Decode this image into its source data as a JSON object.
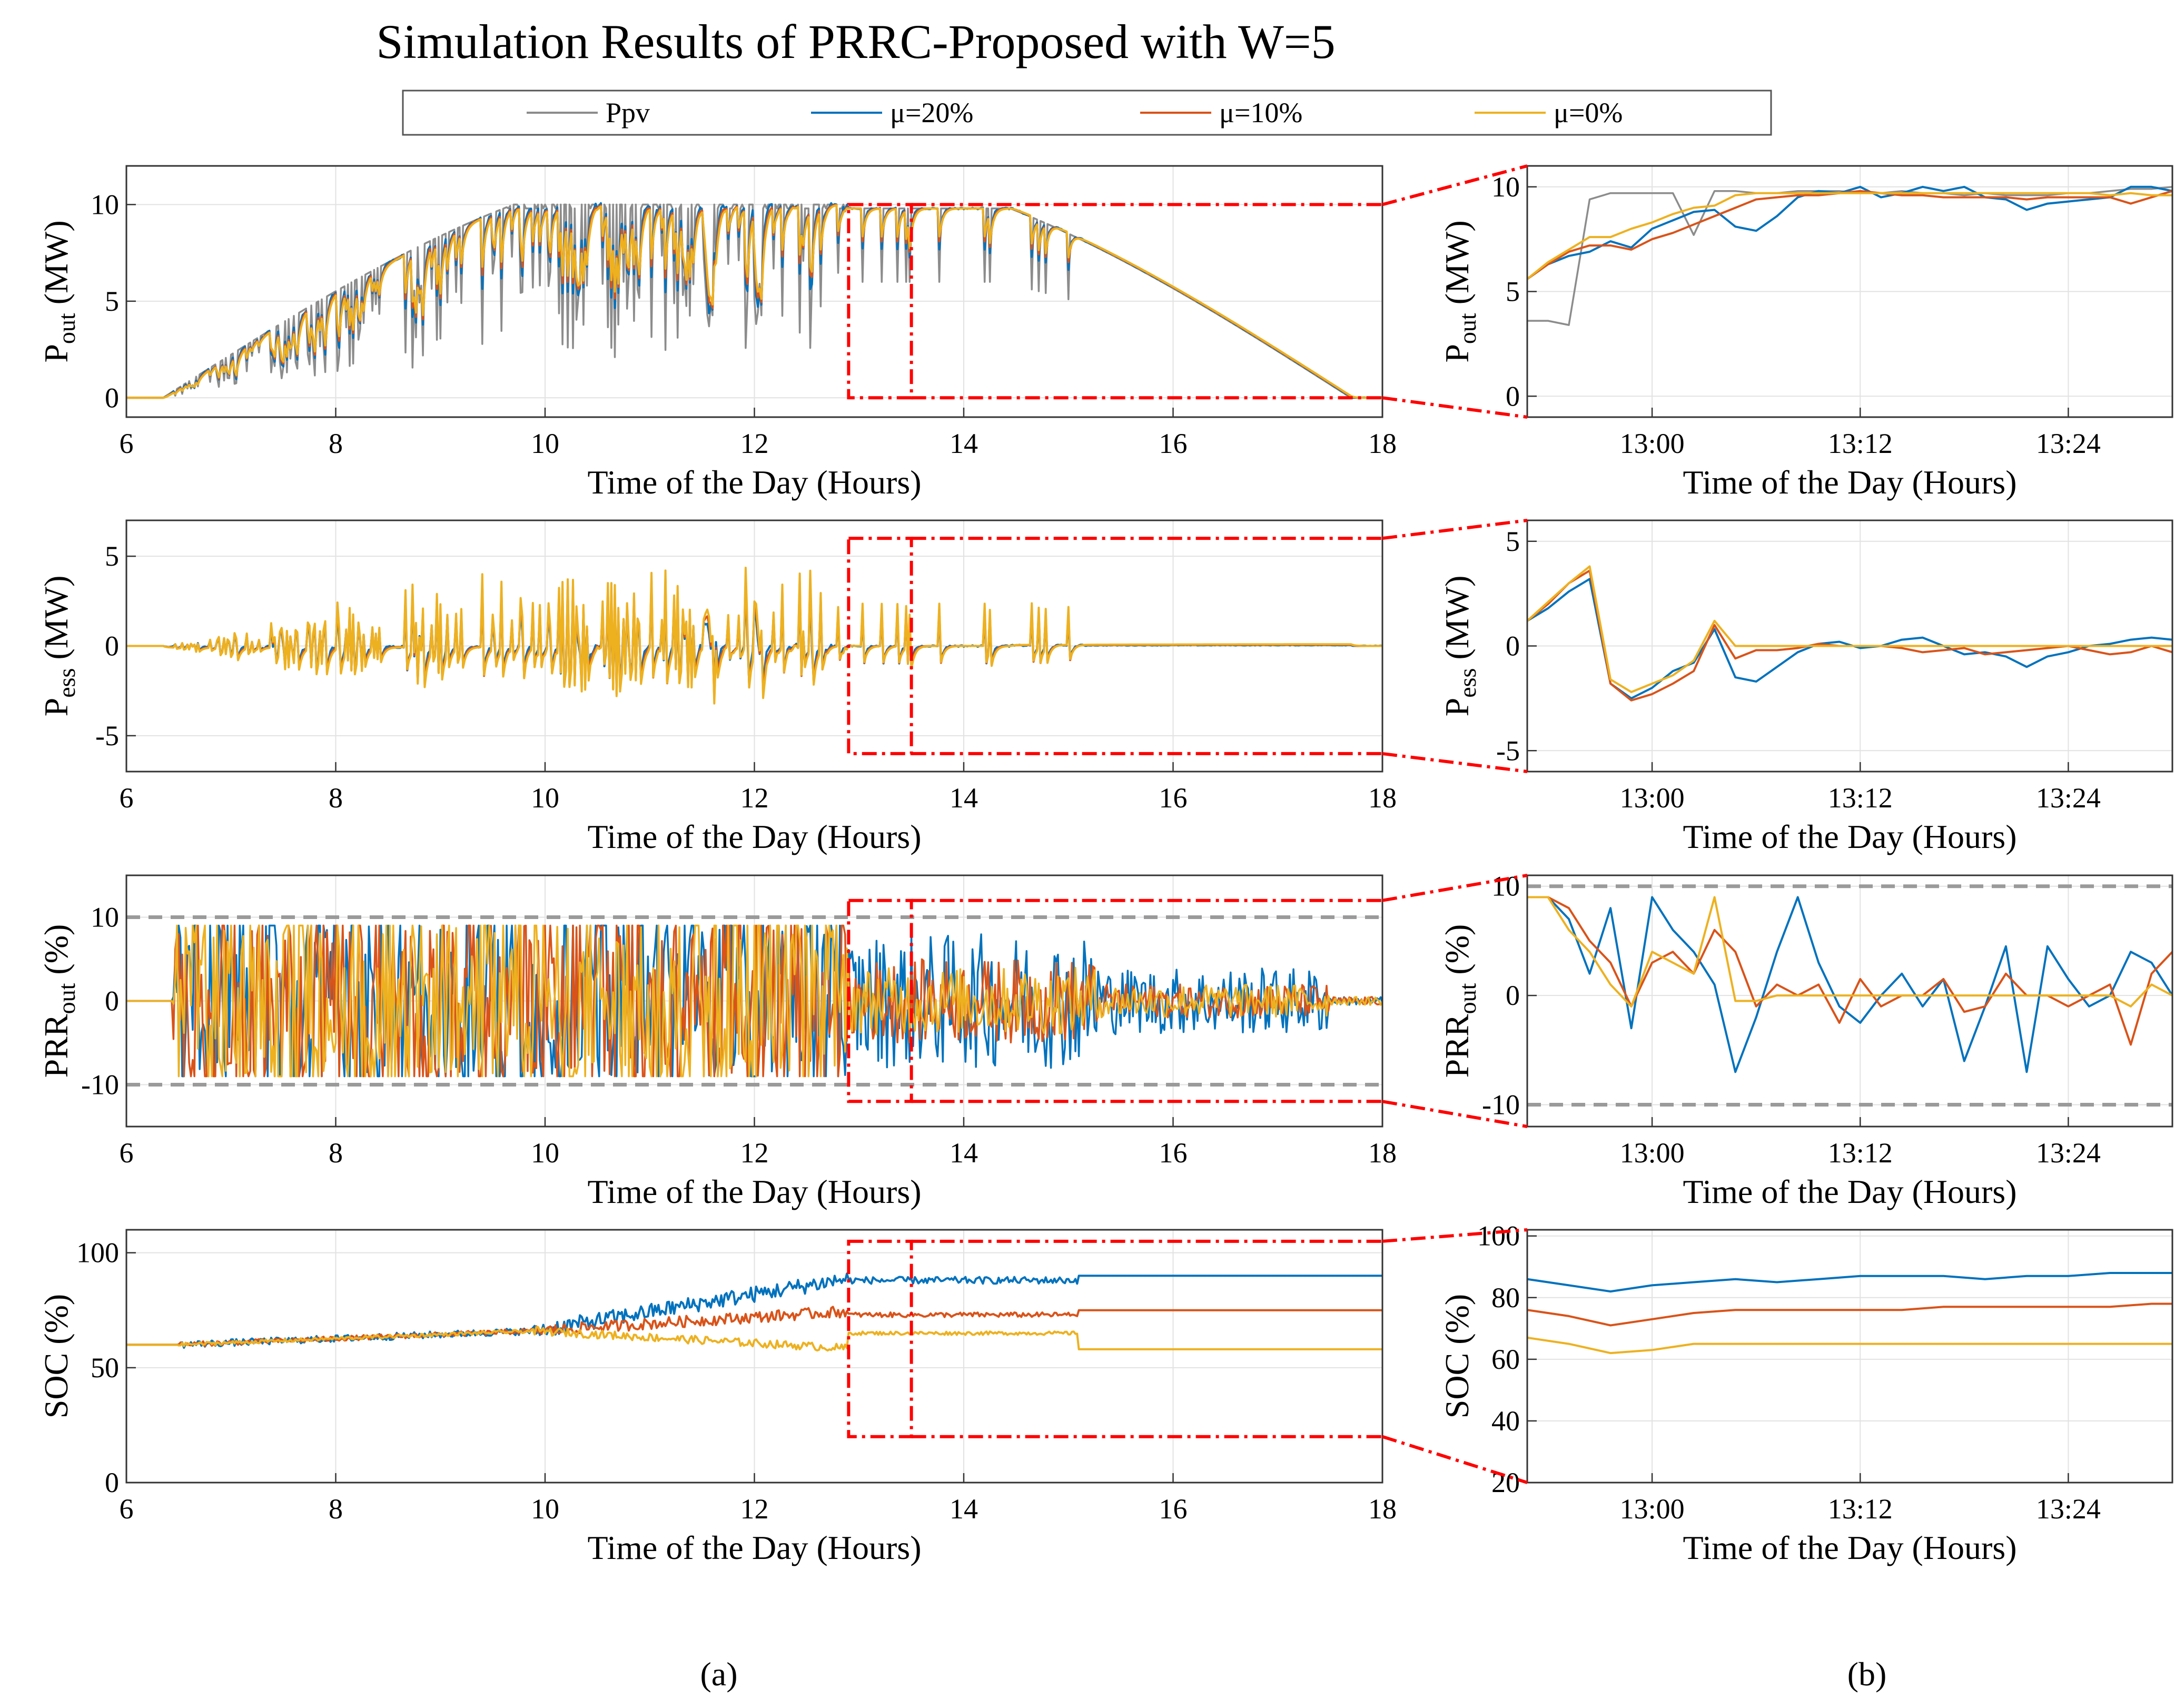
{
  "title": "Simulation Results of PRRC-Proposed with W=5",
  "legend": [
    {
      "name": "Ppv",
      "color": "#8c8c8c"
    },
    {
      "name": "μ=20%",
      "color": "#0072BD"
    },
    {
      "name": "μ=10%",
      "color": "#D95319"
    },
    {
      "name": "μ=0%",
      "color": "#EDB120"
    }
  ],
  "xlabel": "Time of the Day (Hours)",
  "subpanel_labels": {
    "a": "(a)",
    "b": "(b)"
  },
  "zoom_window_color": "#ff0000",
  "chart_data": [
    {
      "id": "pout_full",
      "type": "line",
      "ylabel": "P_out (MW)",
      "xlim": [
        6,
        18
      ],
      "ylim": [
        -1,
        12
      ],
      "xticks": [
        6,
        8,
        10,
        12,
        14,
        16,
        18
      ],
      "xtick_labels": [
        "6",
        "8",
        "10",
        "12",
        "14",
        "16",
        "18"
      ],
      "yticks": [
        0,
        5,
        10
      ],
      "ytick_labels": [
        "0",
        "5",
        "10"
      ],
      "zoom": [
        12.9,
        13.5
      ]
    },
    {
      "id": "pout_zoom",
      "type": "line",
      "ylabel": "P_out (MW)",
      "xlim": [
        12.88,
        13.5
      ],
      "ylim": [
        -1,
        11
      ],
      "xticks": [
        13.0,
        13.2,
        13.4
      ],
      "xtick_labels": [
        "13:00",
        "13:12",
        "13:24"
      ],
      "yticks": [
        0,
        5,
        10
      ],
      "ytick_labels": [
        "0",
        "5",
        "10"
      ]
    },
    {
      "id": "pess_full",
      "type": "line",
      "ylabel": "P_ess (MW)",
      "xlim": [
        6,
        18
      ],
      "ylim": [
        -7,
        7
      ],
      "xticks": [
        6,
        8,
        10,
        12,
        14,
        16,
        18
      ],
      "xtick_labels": [
        "6",
        "8",
        "10",
        "12",
        "14",
        "16",
        "18"
      ],
      "yticks": [
        -5,
        0,
        5
      ],
      "ytick_labels": [
        "-5",
        "0",
        "5"
      ],
      "zoom": [
        12.9,
        13.5
      ]
    },
    {
      "id": "pess_zoom",
      "type": "line",
      "ylabel": "P_ess (MW)",
      "xlim": [
        12.88,
        13.5
      ],
      "ylim": [
        -6,
        6
      ],
      "xticks": [
        13.0,
        13.2,
        13.4
      ],
      "xtick_labels": [
        "13:00",
        "13:12",
        "13:24"
      ],
      "yticks": [
        -5,
        0,
        5
      ],
      "ytick_labels": [
        "-5",
        "0",
        "5"
      ]
    },
    {
      "id": "prr_full",
      "type": "line",
      "ylabel": "PRR_out (%)",
      "xlim": [
        6,
        18
      ],
      "ylim": [
        -15,
        15
      ],
      "xticks": [
        6,
        8,
        10,
        12,
        14,
        16,
        18
      ],
      "xtick_labels": [
        "6",
        "8",
        "10",
        "12",
        "14",
        "16",
        "18"
      ],
      "yticks": [
        -10,
        0,
        10
      ],
      "ytick_labels": [
        "-10",
        "0",
        "10"
      ],
      "limits": [
        10,
        -10
      ],
      "zoom": [
        12.9,
        13.5
      ]
    },
    {
      "id": "prr_zoom",
      "type": "line",
      "ylabel": "PRR_out (%)",
      "xlim": [
        12.88,
        13.5
      ],
      "ylim": [
        -12,
        11
      ],
      "xticks": [
        13.0,
        13.2,
        13.4
      ],
      "xtick_labels": [
        "13:00",
        "13:12",
        "13:24"
      ],
      "yticks": [
        -10,
        0,
        10
      ],
      "ytick_labels": [
        "-10",
        "0",
        "10"
      ],
      "limits": [
        10,
        -10
      ]
    },
    {
      "id": "soc_full",
      "type": "line",
      "ylabel": "SOC (%)",
      "xlim": [
        6,
        18
      ],
      "ylim": [
        0,
        110
      ],
      "xticks": [
        6,
        8,
        10,
        12,
        14,
        16,
        18
      ],
      "xtick_labels": [
        "6",
        "8",
        "10",
        "12",
        "14",
        "16",
        "18"
      ],
      "yticks": [
        0,
        50,
        100
      ],
      "ytick_labels": [
        "0",
        "50",
        "100"
      ],
      "zoom": [
        12.9,
        13.5
      ]
    },
    {
      "id": "soc_zoom",
      "type": "line",
      "ylabel": "SOC (%)",
      "xlim": [
        12.88,
        13.5
      ],
      "ylim": [
        20,
        102
      ],
      "xticks": [
        13.0,
        13.2,
        13.4
      ],
      "xtick_labels": [
        "13:00",
        "13:12",
        "13:24"
      ],
      "yticks": [
        20,
        40,
        60,
        80,
        100
      ],
      "ytick_labels": [
        "20",
        "40",
        "60",
        "80",
        "100"
      ]
    }
  ],
  "zoom_series": {
    "pout": {
      "x": [
        12.88,
        12.9,
        12.92,
        12.94,
        12.96,
        12.98,
        13.0,
        13.02,
        13.04,
        13.06,
        13.08,
        13.1,
        13.12,
        13.14,
        13.16,
        13.18,
        13.2,
        13.22,
        13.24,
        13.26,
        13.28,
        13.3,
        13.32,
        13.34,
        13.36,
        13.38,
        13.4,
        13.42,
        13.44,
        13.46,
        13.48,
        13.5
      ],
      "Ppv": [
        3.6,
        3.6,
        3.4,
        9.4,
        9.7,
        9.7,
        9.7,
        9.7,
        7.7,
        9.8,
        9.8,
        9.7,
        9.7,
        9.8,
        9.8,
        9.8,
        9.7,
        9.7,
        9.8,
        9.7,
        9.7,
        9.6,
        9.7,
        9.6,
        9.6,
        9.6,
        9.7,
        9.7,
        9.8,
        9.9,
        9.9,
        10.0
      ],
      "mu20": [
        5.6,
        6.3,
        6.7,
        6.9,
        7.4,
        7.1,
        8.0,
        8.4,
        8.8,
        8.9,
        8.1,
        7.9,
        8.6,
        9.5,
        9.8,
        9.7,
        10.0,
        9.5,
        9.7,
        10.0,
        9.8,
        10.0,
        9.5,
        9.4,
        8.9,
        9.2,
        9.3,
        9.4,
        9.5,
        10.0,
        10.0,
        9.8
      ],
      "mu10": [
        5.6,
        6.3,
        6.9,
        7.2,
        7.2,
        7.0,
        7.5,
        7.8,
        8.2,
        8.6,
        9.0,
        9.4,
        9.5,
        9.6,
        9.6,
        9.7,
        9.8,
        9.7,
        9.6,
        9.6,
        9.5,
        9.5,
        9.5,
        9.5,
        9.4,
        9.5,
        9.5,
        9.5,
        9.5,
        9.2,
        9.5,
        9.8
      ],
      "mu0": [
        5.6,
        6.4,
        7.0,
        7.6,
        7.6,
        8.0,
        8.3,
        8.7,
        9.0,
        9.1,
        9.6,
        9.7,
        9.7,
        9.7,
        9.7,
        9.7,
        9.7,
        9.7,
        9.7,
        9.7,
        9.7,
        9.7,
        9.7,
        9.7,
        9.7,
        9.7,
        9.7,
        9.7,
        9.6,
        9.7,
        9.6,
        9.6
      ]
    },
    "pess": {
      "x": [
        12.88,
        12.9,
        12.92,
        12.94,
        12.96,
        12.98,
        13.0,
        13.02,
        13.04,
        13.06,
        13.08,
        13.1,
        13.12,
        13.14,
        13.16,
        13.18,
        13.2,
        13.22,
        13.24,
        13.26,
        13.28,
        13.3,
        13.32,
        13.34,
        13.36,
        13.38,
        13.4,
        13.42,
        13.44,
        13.46,
        13.48,
        13.5
      ],
      "mu20": [
        1.2,
        1.8,
        2.6,
        3.2,
        -1.8,
        -2.5,
        -2.0,
        -1.2,
        -0.8,
        0.8,
        -1.5,
        -1.7,
        -1.0,
        -0.3,
        0.1,
        0.2,
        -0.1,
        0.0,
        0.3,
        0.4,
        0.0,
        -0.4,
        -0.3,
        -0.5,
        -1.0,
        -0.5,
        -0.3,
        0.0,
        0.1,
        0.3,
        0.4,
        0.3
      ],
      "mu10": [
        1.2,
        2.0,
        3.0,
        3.6,
        -1.8,
        -2.6,
        -2.3,
        -1.8,
        -1.2,
        1.0,
        -0.6,
        -0.2,
        -0.2,
        -0.1,
        0.1,
        0.0,
        0.0,
        0.0,
        -0.1,
        -0.3,
        -0.2,
        -0.1,
        -0.4,
        -0.3,
        -0.2,
        -0.1,
        0.0,
        -0.2,
        -0.4,
        -0.3,
        0.0,
        -0.3
      ],
      "mu0": [
        1.2,
        2.1,
        3.0,
        3.8,
        -1.6,
        -2.2,
        -1.8,
        -1.4,
        -0.7,
        1.2,
        0.0,
        0.0,
        0.0,
        0.0,
        0.0,
        0.0,
        0.0,
        0.0,
        0.0,
        0.0,
        0.0,
        0.0,
        0.0,
        0.0,
        0.0,
        0.0,
        0.0,
        0.0,
        0.0,
        0.0,
        0.0,
        0.0
      ]
    },
    "prr": {
      "x": [
        12.88,
        12.9,
        12.92,
        12.94,
        12.96,
        12.98,
        13.0,
        13.02,
        13.04,
        13.06,
        13.08,
        13.1,
        13.12,
        13.14,
        13.16,
        13.18,
        13.2,
        13.22,
        13.24,
        13.26,
        13.28,
        13.3,
        13.32,
        13.34,
        13.36,
        13.38,
        13.4,
        13.42,
        13.44,
        13.46,
        13.48,
        13.5
      ],
      "mu20": [
        9,
        9,
        7,
        2,
        8,
        -3,
        9,
        6,
        4,
        1,
        -7,
        -2,
        4,
        9,
        3,
        -1,
        -2.5,
        0,
        2,
        -1,
        1.5,
        -6,
        -1,
        4.5,
        -7,
        4.5,
        1.5,
        -1,
        0,
        4,
        3,
        0
      ],
      "mu10": [
        9,
        9,
        8,
        5,
        3,
        -1,
        3,
        4,
        2,
        6,
        4,
        -1,
        1,
        0,
        1,
        -2.5,
        1.5,
        -1,
        0,
        0,
        1.5,
        -1.5,
        -1,
        2,
        0,
        0,
        -1,
        0,
        1,
        -4.5,
        2,
        4
      ],
      "mu0": [
        9,
        9,
        6,
        4,
        1,
        -1,
        4,
        3,
        2,
        9,
        -0.5,
        -0.5,
        0,
        0,
        0,
        0,
        0,
        0,
        0,
        0,
        0,
        0,
        0,
        0,
        0,
        0,
        0,
        0,
        0,
        -1,
        1,
        0
      ]
    },
    "soc": {
      "x": [
        12.88,
        12.92,
        12.96,
        13.0,
        13.04,
        13.08,
        13.12,
        13.16,
        13.2,
        13.24,
        13.28,
        13.32,
        13.36,
        13.4,
        13.44,
        13.48,
        13.5
      ],
      "mu20": [
        86,
        84,
        82,
        84,
        85,
        86,
        85,
        86,
        87,
        87,
        87,
        86,
        87,
        87,
        88,
        88,
        88
      ],
      "mu10": [
        76,
        74,
        71,
        73,
        75,
        76,
        76,
        76,
        76,
        76,
        77,
        77,
        77,
        77,
        77,
        78,
        78
      ],
      "mu0": [
        67,
        65,
        62,
        63,
        65,
        65,
        65,
        65,
        65,
        65,
        65,
        65,
        65,
        65,
        65,
        65,
        65
      ]
    }
  }
}
